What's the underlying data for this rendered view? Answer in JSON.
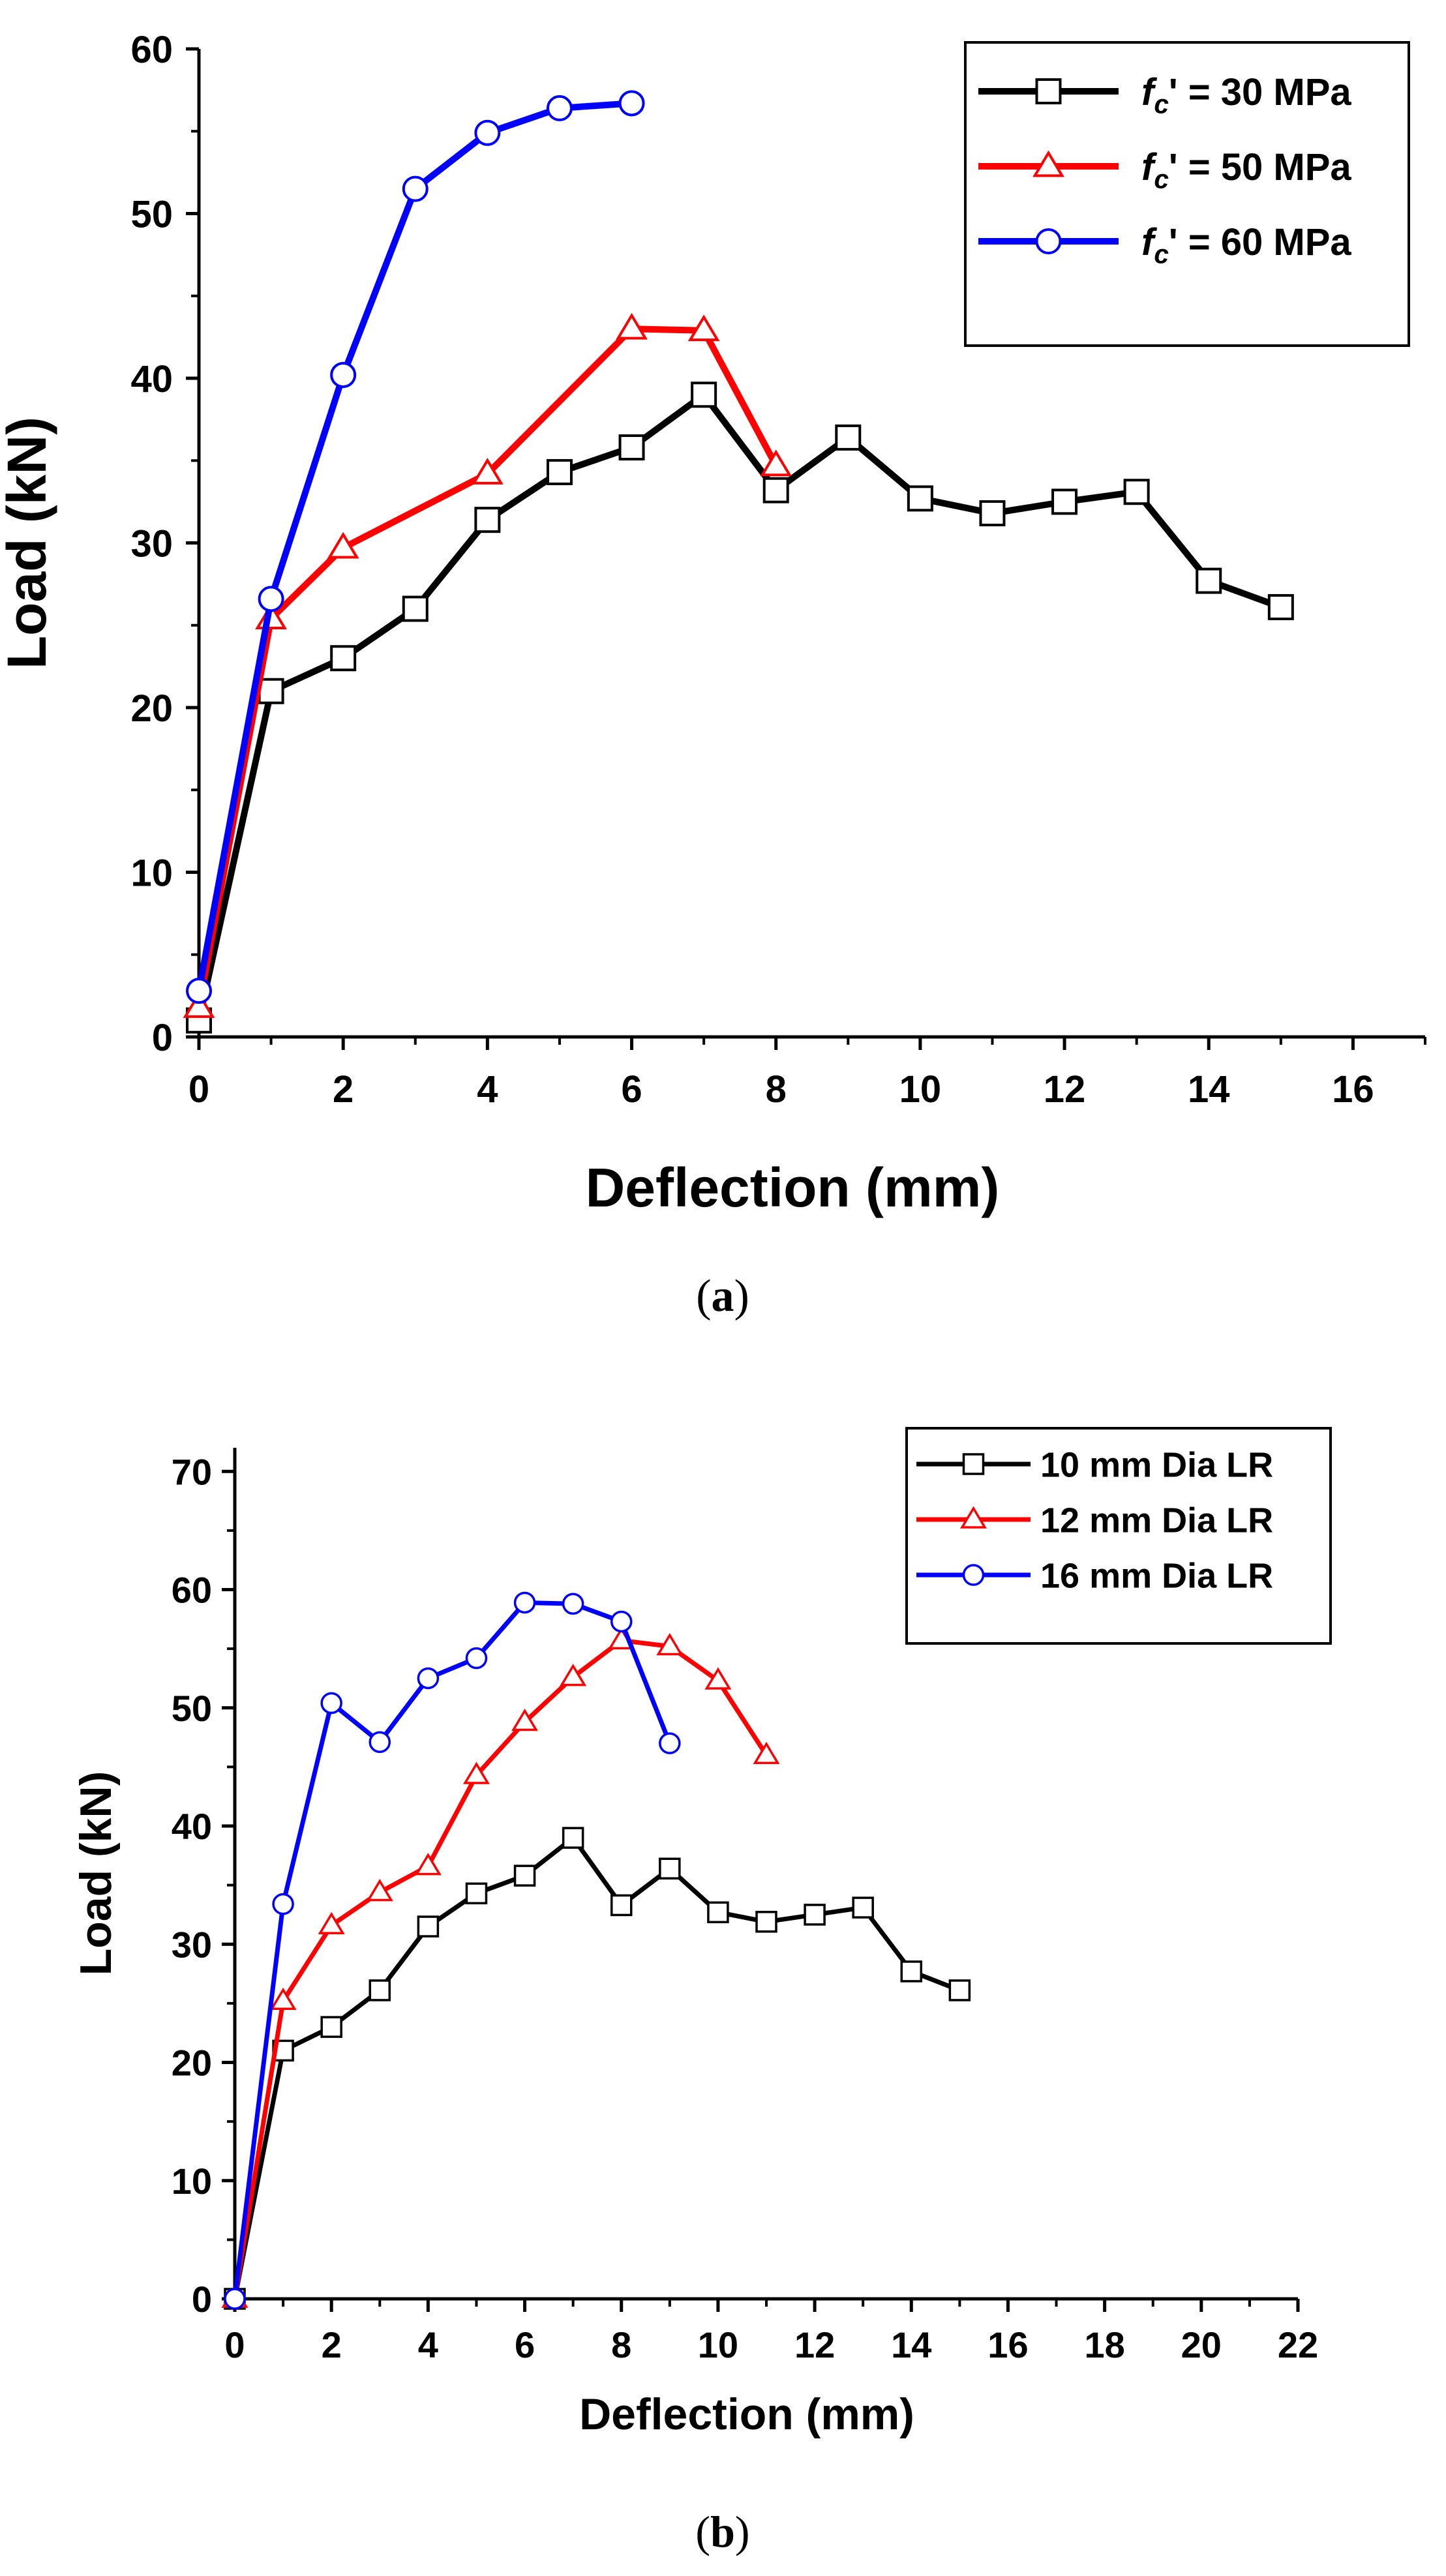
{
  "chart_data": [
    {
      "type": "line",
      "caption": "(a)",
      "xlabel": "Deflection (mm)",
      "ylabel": "Load (kN)",
      "xlim": [
        0,
        17
      ],
      "ylim": [
        0,
        60
      ],
      "xticks": [
        0,
        2,
        4,
        6,
        8,
        10,
        12,
        14,
        16
      ],
      "yticks": [
        0,
        10,
        20,
        30,
        40,
        50,
        60
      ],
      "legend_position": "top-right",
      "series": [
        {
          "name": "fc' = 30 MPa",
          "label_main": "f",
          "label_sub": "c",
          "label_rest": "' = 30 MPa",
          "color": "#000000",
          "marker": "square",
          "x": [
            0,
            1,
            2,
            3,
            4,
            5,
            6,
            7,
            8,
            9,
            10,
            11,
            12,
            13,
            14,
            15
          ],
          "y": [
            1.0,
            21.0,
            23.0,
            26.0,
            31.4,
            34.3,
            35.8,
            39.0,
            33.2,
            36.4,
            32.7,
            31.8,
            32.5,
            33.1,
            27.7,
            26.1
          ]
        },
        {
          "name": "fc' = 50 MPa",
          "label_main": "f",
          "label_sub": "c",
          "label_rest": "' = 50 MPa",
          "color": "#ff0000",
          "marker": "triangle",
          "x": [
            0,
            1,
            2,
            4,
            6,
            7,
            8
          ],
          "y": [
            1.8,
            25.4,
            29.7,
            34.2,
            43.0,
            42.9,
            34.7
          ]
        },
        {
          "name": "fc' = 60 MPa",
          "label_main": "f",
          "label_sub": "c",
          "label_rest": "' = 60 MPa",
          "color": "#0000ff",
          "marker": "circle",
          "x": [
            0,
            1,
            2,
            3,
            4,
            5,
            6
          ],
          "y": [
            2.8,
            26.6,
            40.2,
            51.5,
            54.9,
            56.4,
            56.7
          ]
        }
      ]
    },
    {
      "type": "line",
      "caption": "(b)",
      "xlabel": "Deflection (mm)",
      "ylabel": "Load (kN)",
      "xlim": [
        0,
        22
      ],
      "ylim": [
        0,
        72
      ],
      "xticks": [
        0,
        2,
        4,
        6,
        8,
        10,
        12,
        14,
        16,
        18,
        20,
        22
      ],
      "yticks": [
        0,
        10,
        20,
        30,
        40,
        50,
        60,
        70
      ],
      "legend_position": "top-right",
      "series": [
        {
          "name": "10 mm Dia LR",
          "color": "#000000",
          "marker": "square",
          "x": [
            0,
            1,
            2,
            3,
            4,
            5,
            6,
            7,
            8,
            9,
            10,
            11,
            12,
            13,
            14,
            15
          ],
          "y": [
            0,
            21.0,
            23.0,
            26.1,
            31.5,
            34.3,
            35.8,
            39.0,
            33.3,
            36.4,
            32.7,
            31.9,
            32.5,
            33.1,
            27.7,
            26.1
          ]
        },
        {
          "name": "12 mm Dia LR",
          "color": "#ff0000",
          "marker": "triangle",
          "x": [
            0,
            1,
            2,
            3,
            4,
            5,
            6,
            7,
            8,
            9,
            10,
            11
          ],
          "y": [
            0,
            25.2,
            31.6,
            34.4,
            36.6,
            44.3,
            48.8,
            52.6,
            55.7,
            55.2,
            52.3,
            46.0
          ]
        },
        {
          "name": "16 mm Dia LR",
          "color": "#0000ff",
          "marker": "circle",
          "x": [
            0,
            1,
            2,
            3,
            4,
            5,
            6,
            7,
            8,
            9
          ],
          "y": [
            0,
            33.4,
            50.4,
            47.1,
            52.5,
            54.2,
            58.9,
            58.8,
            57.3,
            47.0
          ]
        }
      ]
    }
  ]
}
